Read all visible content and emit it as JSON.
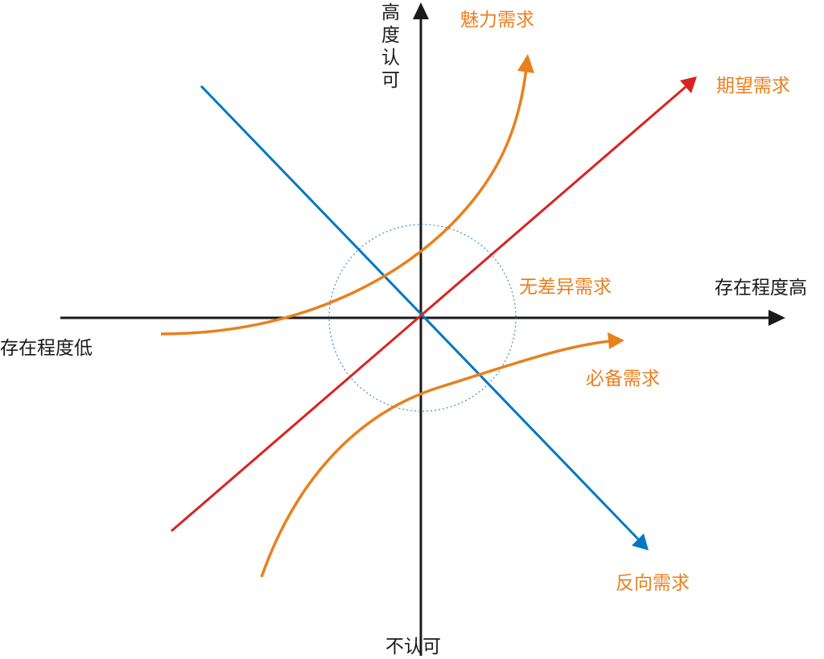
{
  "axes": {
    "y_top_label": "高度认可",
    "y_bottom_label": "不认可",
    "x_right_label": "存在程度高",
    "x_left_label": "存在程度低"
  },
  "curves": {
    "attractive": {
      "label": "魅力需求",
      "color": "#e8801e"
    },
    "performance": {
      "label": "期望需求",
      "color": "#d92323"
    },
    "indifferent": {
      "label": "无差异需求",
      "color": "#3a8fd0"
    },
    "must_be": {
      "label": "必备需求",
      "color": "#e8801e"
    },
    "reverse": {
      "label": "反向需求",
      "color": "#0078c1"
    }
  },
  "colors": {
    "axis": "#1a1a1a",
    "label_text": "#e8801e"
  }
}
